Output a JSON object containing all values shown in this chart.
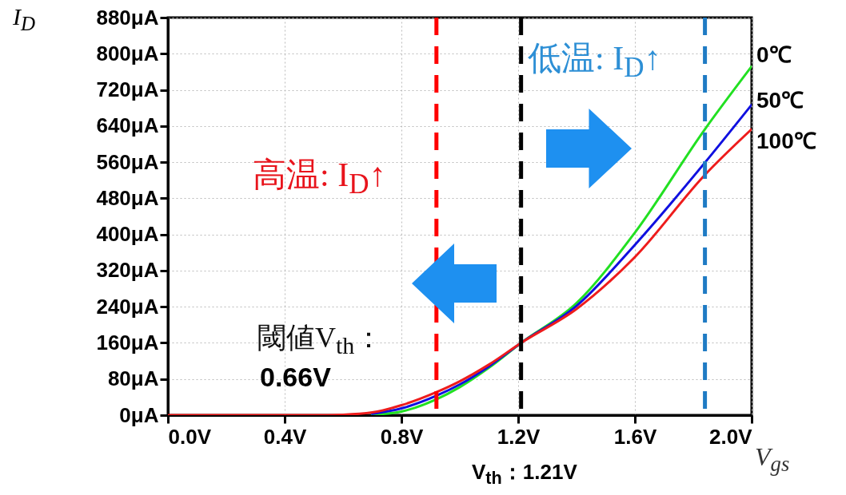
{
  "chart_data": {
    "type": "line",
    "xlabel": "V$_{gs}$",
    "ylabel": "I$_{D}$",
    "x": [
      0,
      0.5,
      0.6,
      0.7,
      0.8,
      0.92,
      1.0,
      1.1,
      1.21,
      1.4,
      1.6,
      1.84,
      2.0
    ],
    "series": [
      {
        "name": "0℃",
        "color": "#22e022",
        "values": [
          null,
          null,
          null,
          1,
          8,
          35,
          62,
          105,
          160,
          248,
          404,
          633,
          772
        ]
      },
      {
        "name": "50℃",
        "color": "#1010e0",
        "values": [
          null,
          null,
          null,
          3,
          15,
          43,
          68,
          108,
          160,
          242,
          377,
          559,
          687
        ]
      },
      {
        "name": "100℃",
        "color": "#ee1c1c",
        "values": [
          0,
          0,
          1,
          6,
          22,
          51,
          75,
          112,
          160,
          235,
          350,
          532,
          633
        ]
      }
    ],
    "xlim": [
      0,
      2.0
    ],
    "xticks": [
      {
        "value": 0,
        "label": "0.0V"
      },
      {
        "value": 0.4,
        "label": "0.4V"
      },
      {
        "value": 0.8,
        "label": "0.8V"
      },
      {
        "value": 1.2,
        "label": "1.2V"
      },
      {
        "value": 1.6,
        "label": "1.6V"
      },
      {
        "value": 2.0,
        "label": "2.0V"
      }
    ],
    "ylim": [
      0,
      880
    ],
    "yticks": [
      {
        "value": 0,
        "label": "0μA"
      },
      {
        "value": 80,
        "label": "80μA"
      },
      {
        "value": 160,
        "label": "160μA"
      },
      {
        "value": 240,
        "label": "240μA"
      },
      {
        "value": 320,
        "label": "320μA"
      },
      {
        "value": 400,
        "label": "400μA"
      },
      {
        "value": 480,
        "label": "480μA"
      },
      {
        "value": 560,
        "label": "560μA"
      },
      {
        "value": 640,
        "label": "640μA"
      },
      {
        "value": 720,
        "label": "720μA"
      },
      {
        "value": 800,
        "label": "800μA"
      },
      {
        "value": 880,
        "label": "880μA"
      }
    ],
    "grid": true,
    "marker": "none",
    "line_style": "solid",
    "ref_lines": [
      {
        "axis": "x",
        "value": 0.92,
        "color": "#ff0000",
        "line_style": "dashed"
      },
      {
        "axis": "x",
        "value": 1.21,
        "color": "#000000",
        "line_style": "dashed"
      },
      {
        "axis": "x",
        "value": 1.84,
        "color": "#1f7bc4",
        "line_style": "dashed"
      }
    ],
    "annotations": [
      "高温: I$_{D}$↑",
      "低温: I$_{D}$↑",
      "閾値V$_{th}$：",
      "0.66V",
      "V$_{th}$：1.21V"
    ]
  }
}
